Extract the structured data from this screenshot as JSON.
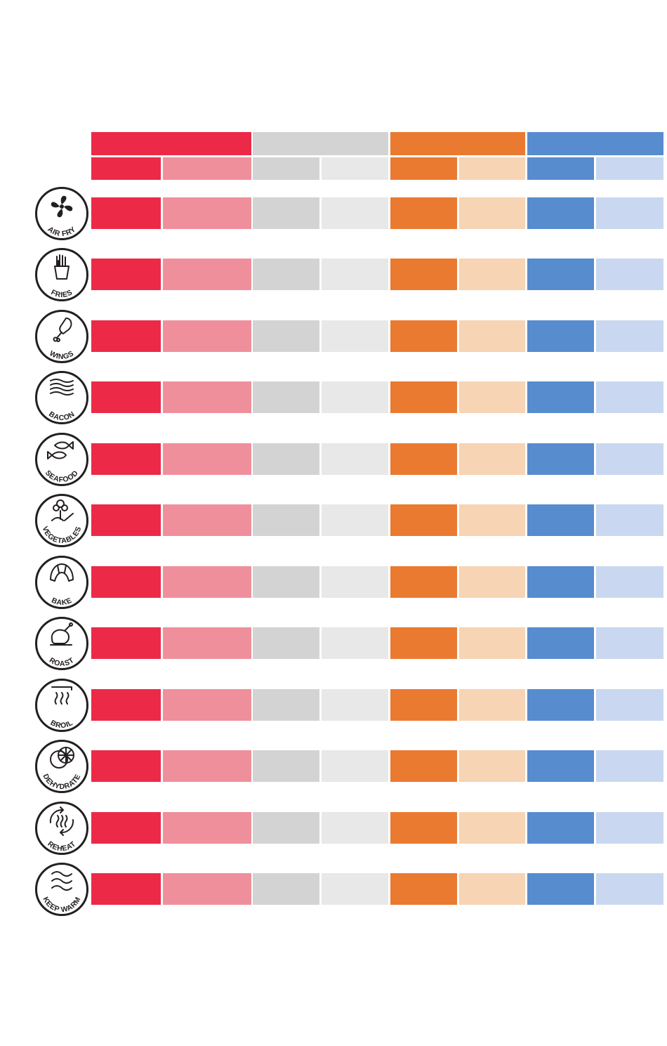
{
  "colors": {
    "group1_dark": "#ec2a48",
    "group1_light": "#f08f9c",
    "group2_dark": "#d3d3d3",
    "group2_light": "#e8e8e8",
    "group3_dark": "#ea7a30",
    "group3_light": "#f6d4b4",
    "group4_dark": "#578ccf",
    "group4_light": "#c9d8f0",
    "icon_stroke": "#231f20"
  },
  "header": {
    "groups": [
      {
        "color": "group1_dark"
      },
      {
        "color": "group2_dark"
      },
      {
        "color": "group3_dark"
      },
      {
        "color": "group4_dark"
      }
    ]
  },
  "functions": [
    {
      "label": "AIR FRY",
      "icon": "fan-icon"
    },
    {
      "label": "FRIES",
      "icon": "fries-icon"
    },
    {
      "label": "WINGS",
      "icon": "drumstick-icon"
    },
    {
      "label": "BACON",
      "icon": "bacon-icon"
    },
    {
      "label": "SEAFOOD",
      "icon": "fish-icon"
    },
    {
      "label": "VEGETABLES",
      "icon": "vegetables-icon"
    },
    {
      "label": "BAKE",
      "icon": "croissant-icon"
    },
    {
      "label": "ROAST",
      "icon": "roast-chicken-icon"
    },
    {
      "label": "BROIL",
      "icon": "broil-heat-icon"
    },
    {
      "label": "DEHYDRATE",
      "icon": "citrus-slices-icon"
    },
    {
      "label": "REHEAT",
      "icon": "reheat-icon"
    },
    {
      "label": "KEEP WARM",
      "icon": "keep-warm-icon"
    }
  ]
}
